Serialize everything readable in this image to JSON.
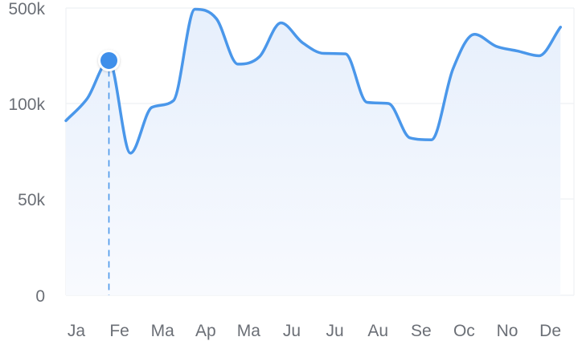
{
  "chart_data": {
    "type": "area",
    "title": "",
    "xlabel": "",
    "ylabel": "",
    "categories": [
      "Ja",
      "Fe",
      "Ma",
      "Ap",
      "Ma",
      "Ju",
      "Ju",
      "Au",
      "Se",
      "Oc",
      "No",
      "De"
    ],
    "y_ticks": [
      {
        "label": "0",
        "value": 0
      },
      {
        "label": "50k",
        "value": 50000
      },
      {
        "label": "100k",
        "value": 100000
      },
      {
        "label": "500k",
        "value": 500000
      }
    ],
    "y_scale": "piecewise",
    "ylim": [
      0,
      500000
    ],
    "grid": true,
    "legend": "none",
    "x": [
      0,
      0.5,
      1,
      1.5,
      2,
      2.5,
      3,
      3.5,
      4,
      4.5,
      5,
      5.5,
      6,
      6.5,
      7,
      7.5,
      8,
      8.5,
      9,
      9.5,
      10,
      10.5,
      11,
      11.5
    ],
    "values": [
      91000,
      122000,
      280000,
      74000,
      98000,
      112000,
      495000,
      455000,
      265000,
      296000,
      438000,
      355000,
      310000,
      308000,
      105000,
      100000,
      82000,
      81000,
      245000,
      390000,
      340000,
      320000,
      300000,
      420000
    ],
    "highlight": {
      "category": "Fe",
      "value": 280000
    },
    "colors": {
      "line": "#4a97ea",
      "fill_top": "#e6effc",
      "fill_bottom": "#f8fafe",
      "grid": "#eef0f3",
      "point": "#3f8fea",
      "axis_text": "#6b6f76"
    }
  }
}
